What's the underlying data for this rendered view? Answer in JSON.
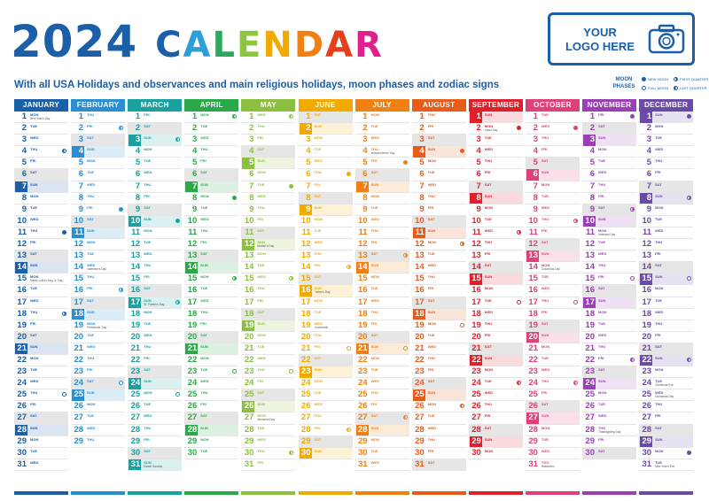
{
  "title": {
    "year": "2024",
    "word": "CALENDAR"
  },
  "subtitle": "With all USA Holidays and observances and main religious holidays, moon phases and zodiac signs",
  "logo": {
    "line1": "YOUR",
    "line2": "LOGO HERE"
  },
  "moon_legend": {
    "label_line1": "MOON",
    "label_line2": "PHASES",
    "items": [
      "NEW MOON",
      "FIRST QUARTER",
      "FULL MOON",
      "LAST QUARTER"
    ]
  },
  "colors": {
    "brand": "#1b5fa8",
    "weekend": "#e6e6e6",
    "title_letters": [
      "#1b5fa8",
      "#2a9fd8",
      "#2ba85a",
      "#8cc63f",
      "#f2a900",
      "#f07f14",
      "#e63f1a",
      "#e0208c",
      "#9b3fb5"
    ]
  },
  "months": [
    {
      "name": "JANUARY",
      "days": 31,
      "start": 1,
      "color": "#1b5fa8"
    },
    {
      "name": "FEBRUARY",
      "days": 29,
      "start": 4,
      "color": "#2a8ed0"
    },
    {
      "name": "MARCH",
      "days": 31,
      "start": 5,
      "color": "#1ba0a0"
    },
    {
      "name": "APRIL",
      "days": 30,
      "start": 1,
      "color": "#2ba84a"
    },
    {
      "name": "MAY",
      "days": 31,
      "start": 3,
      "color": "#8cbf3f"
    },
    {
      "name": "JUNE",
      "days": 30,
      "start": 6,
      "color": "#f2a900"
    },
    {
      "name": "JULY",
      "days": 31,
      "start": 1,
      "color": "#f07f14"
    },
    {
      "name": "AUGUST",
      "days": 31,
      "start": 4,
      "color": "#e85c1a"
    },
    {
      "name": "SEPTEMBER",
      "days": 30,
      "start": 0,
      "color": "#e01f2b"
    },
    {
      "name": "OCTOBER",
      "days": 31,
      "start": 2,
      "color": "#e0407a"
    },
    {
      "name": "NOVEMBER",
      "days": 30,
      "start": 5,
      "color": "#9b3fb5"
    },
    {
      "name": "DECEMBER",
      "days": 31,
      "start": 0,
      "color": "#6b4aa8"
    }
  ],
  "weekdays": [
    "SUN",
    "MON",
    "TUE",
    "WED",
    "THU",
    "FRI",
    "SAT"
  ],
  "holidays": {
    "0": {
      "1": "New Year's Day",
      "15": "Martin Luther King Jr. Day"
    },
    "1": {
      "14": "Valentine's Day",
      "19": "Presidents' Day"
    },
    "2": {
      "17": "St. Patrick's Day",
      "31": "Easter Sunday"
    },
    "4": {
      "12": "Mother's Day",
      "27": "Memorial Day"
    },
    "5": {
      "16": "Father's Day",
      "19": "Juneteenth"
    },
    "6": {
      "4": "Independence Day"
    },
    "8": {
      "2": "Labor Day"
    },
    "9": {
      "14": "Columbus Day",
      "31": "Halloween"
    },
    "10": {
      "11": "Veterans Day",
      "28": "Thanksgiving Day"
    },
    "11": {
      "24": "Christmas Eve",
      "25": "Christmas Day",
      "31": "New Year's Eve"
    }
  },
  "moon_days": {
    "0": {
      "4": "last",
      "11": "new",
      "18": "first",
      "25": "full"
    },
    "1": {
      "2": "last",
      "9": "new",
      "16": "first",
      "24": "full"
    },
    "2": {
      "3": "last",
      "10": "new",
      "17": "first",
      "25": "full"
    },
    "3": {
      "1": "last",
      "8": "new",
      "15": "first",
      "23": "full"
    },
    "4": {
      "1": "last",
      "7": "new",
      "15": "first",
      "23": "full",
      "30": "last"
    },
    "5": {
      "6": "new",
      "14": "first",
      "21": "full",
      "28": "last"
    },
    "6": {
      "5": "new",
      "13": "first",
      "21": "full",
      "27": "last"
    },
    "7": {
      "4": "new",
      "12": "first",
      "19": "full",
      "26": "last"
    },
    "8": {
      "2": "new",
      "11": "first",
      "17": "full",
      "24": "last"
    },
    "9": {
      "2": "new",
      "10": "first",
      "17": "full",
      "24": "last"
    },
    "10": {
      "1": "new",
      "9": "first",
      "15": "full",
      "22": "last"
    },
    "11": {
      "1": "new",
      "8": "first",
      "15": "full",
      "22": "last",
      "30": "new"
    }
  }
}
